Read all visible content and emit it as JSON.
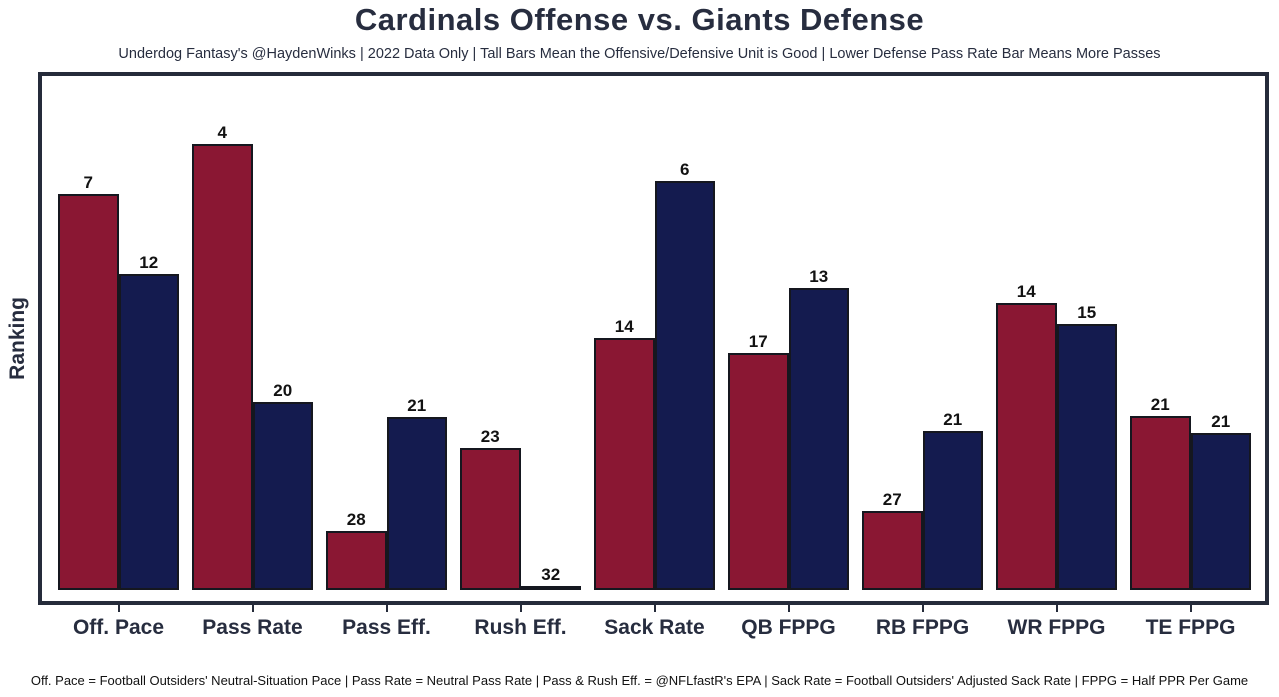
{
  "header": {
    "title": "Cardinals Offense vs. Giants Defense",
    "subtitle": "Underdog Fantasy's @HaydenWinks | 2022 Data Only | Tall Bars Mean the Offensive/Defensive Unit is Good | Lower Defense Pass Rate Bar Means More Passes"
  },
  "footnote": "Off. Pace = Football Outsiders' Neutral-Situation Pace | Pass Rate = Neutral Pass Rate | Pass & Rush Eff. = @NFLfastR's EPA | Sack Rate = Football Outsiders' Adjusted Sack Rate | FPPG = Half PPR Per Game",
  "colors": {
    "offense_bar": "#8A1733",
    "defense_bar": "#141B4F",
    "bar_outline": "#15171F",
    "frame": "#252B3A",
    "heading_text": "#272D3F",
    "value_label_text": "#121212",
    "background": "#FFFFFF"
  },
  "chart_data": {
    "type": "bar",
    "title": "Cardinals Offense vs. Giants Defense",
    "xlabel": "",
    "ylabel": "Ranking",
    "categories": [
      "Off. Pace",
      "Pass Rate",
      "Pass Eff.",
      "Rush Eff.",
      "Sack Rate",
      "QB FPPG",
      "RB FPPG",
      "WR FPPG",
      "TE FPPG"
    ],
    "series": [
      {
        "name": "Cardinals Offense",
        "color": "#8A1733",
        "ranks": [
          7,
          4,
          28,
          23,
          14,
          17,
          27,
          14,
          21
        ],
        "height_frac": [
          0.77,
          0.868,
          0.115,
          0.276,
          0.49,
          0.461,
          0.154,
          0.558,
          0.339
        ]
      },
      {
        "name": "Giants Defense",
        "color": "#141B4F",
        "ranks": [
          12,
          20,
          21,
          32,
          6,
          13,
          21,
          15,
          21
        ],
        "height_frac": [
          0.615,
          0.366,
          0.337,
          0.004,
          0.796,
          0.588,
          0.309,
          0.517,
          0.305
        ]
      }
    ],
    "ylim": [
      0,
      33
    ],
    "grid": false,
    "legend": false,
    "value_axis_ticks_visible": false,
    "bar_labels": "rank shown above each bar; lower rank number = taller bar"
  }
}
